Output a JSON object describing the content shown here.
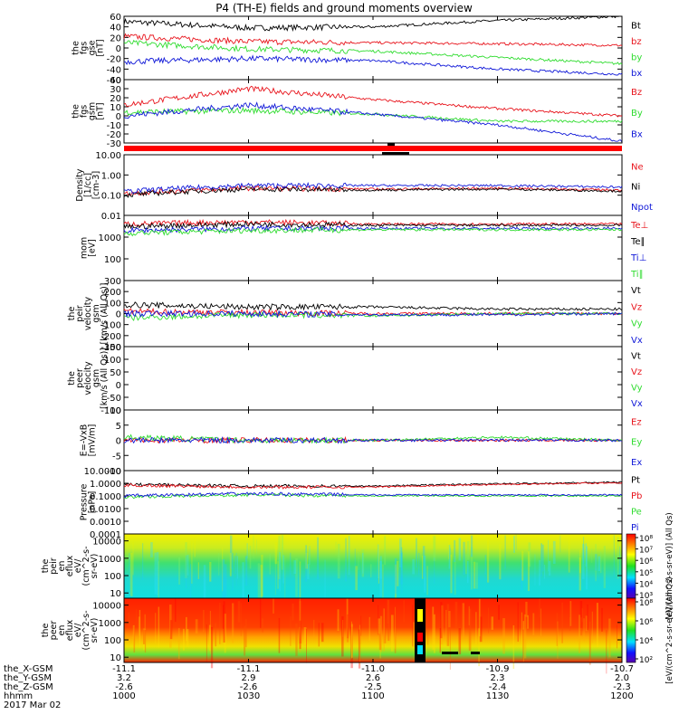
{
  "title": "P4 (TH-E) fields and ground moments overview",
  "colors": {
    "black": "#000000",
    "red": "#e8141c",
    "green": "#2fdc2f",
    "blue": "#1018d8"
  },
  "chart_data": [
    {
      "type": "line",
      "panel": "fgs_gse",
      "ylabel_lines": [
        "the",
        "fgs",
        "gse",
        "[nT]"
      ],
      "ylim": [
        -60,
        60
      ],
      "yticks": [
        "60",
        "40",
        "20",
        "0",
        "-20",
        "-40",
        "-60"
      ],
      "tickvals": [
        60,
        40,
        20,
        0,
        -20,
        -40,
        -60
      ],
      "legend": [
        "Bt",
        "bz",
        "by",
        "bx"
      ],
      "x": [
        "1000",
        "1030",
        "1100",
        "1130",
        "1200"
      ],
      "series": [
        {
          "name": "Bt",
          "color": "black",
          "values": [
            50,
            38,
            40,
            52,
            60
          ]
        },
        {
          "name": "bz",
          "color": "red",
          "values": [
            22,
            12,
            10,
            8,
            5
          ]
        },
        {
          "name": "by",
          "color": "green",
          "values": [
            10,
            -2,
            -6,
            -18,
            -30
          ]
        },
        {
          "name": "bx",
          "color": "blue",
          "values": [
            -26,
            -20,
            -24,
            -40,
            -50
          ]
        }
      ]
    },
    {
      "type": "line",
      "panel": "fgs_gsm",
      "ylabel_lines": [
        "the",
        "fgs",
        "gsm",
        "[nT]"
      ],
      "ylim": [
        -30,
        40
      ],
      "yticks": [
        "40",
        "30",
        "20",
        "10",
        "0",
        "-10",
        "-20",
        "-30"
      ],
      "tickvals": [
        40,
        30,
        20,
        10,
        0,
        -10,
        -20,
        -30
      ],
      "legend": [
        "Bz",
        "By",
        "Bx"
      ],
      "x": [
        "1000",
        "1030",
        "1100",
        "1130",
        "1200"
      ],
      "series": [
        {
          "name": "Bz",
          "color": "red",
          "values": [
            12,
            30,
            18,
            8,
            0
          ]
        },
        {
          "name": "By",
          "color": "green",
          "values": [
            4,
            6,
            2,
            -6,
            -6
          ]
        },
        {
          "name": "Bx",
          "color": "blue",
          "values": [
            0,
            12,
            2,
            -10,
            -28
          ]
        }
      ]
    },
    {
      "type": "line",
      "panel": "density",
      "ylabel_lines": [
        "Density",
        "[1/cc]",
        "[cm-3]"
      ],
      "log_scale": true,
      "ylim": [
        0.01,
        10
      ],
      "yticks": [
        "10.00",
        "1.00",
        "0.10",
        "0.01"
      ],
      "tickvals": [
        10,
        1,
        0.1,
        0.01
      ],
      "legend": [
        "Ne",
        "Ni",
        "Npot"
      ],
      "x": [
        "1000",
        "1030",
        "1100",
        "1130",
        "1200"
      ],
      "series": [
        {
          "name": "Ne",
          "color": "red",
          "values": [
            0.12,
            0.22,
            0.2,
            0.22,
            0.18
          ]
        },
        {
          "name": "Ni",
          "color": "black",
          "values": [
            0.1,
            0.2,
            0.18,
            0.2,
            0.16
          ]
        },
        {
          "name": "Npot",
          "color": "blue",
          "values": [
            0.15,
            0.3,
            0.3,
            0.3,
            0.25
          ]
        }
      ]
    },
    {
      "type": "line",
      "panel": "temperature",
      "ylabel_lines": [
        "mom",
        "[eV]"
      ],
      "log_scale": true,
      "ylim": [
        10,
        10000
      ],
      "yticks": [
        "1000",
        "100"
      ],
      "tickvals": [
        1000,
        100
      ],
      "legend": [
        "Te⊥",
        "Te∥",
        "Ti⊥",
        "Ti∥"
      ],
      "x": [
        "1000",
        "1030",
        "1100",
        "1130",
        "1200"
      ],
      "series": [
        {
          "name": "Te⊥",
          "color": "red",
          "values": [
            4000,
            5000,
            4000,
            4000,
            4000
          ]
        },
        {
          "name": "Te∥",
          "color": "black",
          "values": [
            3000,
            4000,
            3500,
            3500,
            3500
          ]
        },
        {
          "name": "Ti⊥",
          "color": "blue",
          "values": [
            2000,
            2500,
            2500,
            2500,
            2500
          ]
        },
        {
          "name": "Ti∥",
          "color": "green",
          "values": [
            1500,
            2000,
            2200,
            2200,
            2200
          ]
        }
      ]
    },
    {
      "type": "line",
      "panel": "peir_velocity",
      "ylabel_lines": [
        "the",
        "peir",
        "velocity",
        "gsm",
        "[km/s (All Qs)]"
      ],
      "ylim": [
        -300,
        300
      ],
      "yticks": [
        "300",
        "200",
        "100",
        "0",
        "-100",
        "-200",
        "-300"
      ],
      "tickvals": [
        300,
        200,
        100,
        0,
        -100,
        -200,
        -300
      ],
      "legend": [
        "Vt",
        "Vz",
        "Vy",
        "Vx"
      ],
      "x": [
        "1000",
        "1030",
        "1100",
        "1130",
        "1200"
      ],
      "series": [
        {
          "name": "Vt",
          "color": "black",
          "values": [
            80,
            60,
            60,
            40,
            40
          ]
        },
        {
          "name": "Vz",
          "color": "red",
          "values": [
            20,
            10,
            0,
            0,
            0
          ]
        },
        {
          "name": "Vy",
          "color": "green",
          "values": [
            -40,
            -10,
            -20,
            0,
            0
          ]
        },
        {
          "name": "Vx",
          "color": "blue",
          "values": [
            0,
            0,
            -10,
            -10,
            0
          ]
        }
      ]
    },
    {
      "type": "line",
      "panel": "peer_velocity",
      "ylabel_lines": [
        "the",
        "peer",
        "velocity",
        "gsm",
        "[km/s (All Qs)]"
      ],
      "ylim": [
        -100,
        150
      ],
      "yticks": [
        "150",
        "100",
        "50",
        "0",
        "-50",
        "-100"
      ],
      "tickvals": [
        150,
        100,
        50,
        0,
        -50,
        -100
      ],
      "legend": [
        "Vt",
        "Vz",
        "Vy",
        "Vx"
      ],
      "x": [],
      "series": []
    },
    {
      "type": "line",
      "panel": "efield",
      "ylabel_lines": [
        "E=-VxB",
        "[mV/m]"
      ],
      "ylim": [
        -10,
        10
      ],
      "yticks": [
        "10",
        "5",
        "0",
        "-5",
        "-10"
      ],
      "tickvals": [
        10,
        5,
        0,
        -5,
        -10
      ],
      "legend": [
        "Ez",
        "Ey",
        "Ex"
      ],
      "x": [
        "1000",
        "1030",
        "1100",
        "1130",
        "1200"
      ],
      "series": [
        {
          "name": "Ez",
          "color": "red",
          "values": [
            0,
            0,
            0,
            0,
            0
          ]
        },
        {
          "name": "Ey",
          "color": "green",
          "values": [
            1,
            0,
            0,
            1,
            0
          ]
        },
        {
          "name": "Ex",
          "color": "blue",
          "values": [
            0,
            0,
            0,
            0,
            0
          ]
        }
      ]
    },
    {
      "type": "line",
      "panel": "pressure",
      "ylabel_lines": [
        "Pressure",
        "[nPa]"
      ],
      "log_scale": true,
      "ylim": [
        0.0001,
        10
      ],
      "yticks": [
        "10.0000",
        "1.0000",
        "0.1000",
        "0.0100",
        "0.0010",
        "0.0001"
      ],
      "tickvals": [
        10,
        1,
        0.1,
        0.01,
        0.001,
        0.0001
      ],
      "legend": [
        "Pt",
        "Pb",
        "Pe",
        "Pi"
      ],
      "x": [
        "1000",
        "1030",
        "1100",
        "1130",
        "1200"
      ],
      "series": [
        {
          "name": "Pt",
          "color": "black",
          "values": [
            0.8,
            0.6,
            0.6,
            0.9,
            1.2
          ]
        },
        {
          "name": "Pb",
          "color": "red",
          "values": [
            0.7,
            0.5,
            0.5,
            0.8,
            1.1
          ]
        },
        {
          "name": "Pe",
          "color": "green",
          "values": [
            0.08,
            0.12,
            0.1,
            0.1,
            0.1
          ]
        },
        {
          "name": "Pi",
          "color": "blue",
          "values": [
            0.1,
            0.15,
            0.12,
            0.12,
            0.12
          ]
        }
      ]
    },
    {
      "type": "heatmap",
      "panel": "peir_en_eflux",
      "ylabel_lines": [
        "the",
        "peir",
        "en",
        "eflux",
        "eV/",
        "(cm^2-s-",
        "sr-eV)"
      ],
      "log_scale": true,
      "ylim": [
        5,
        25000
      ],
      "yticks": [
        "10000",
        "1000",
        "100",
        "10"
      ],
      "tickvals": [
        10000,
        1000,
        100,
        10
      ],
      "colorbar_ticks": [
        "10⁸",
        "10⁷",
        "10⁶",
        "10⁵",
        "10⁴",
        "10³"
      ],
      "colorbar_label": "[eV/(cm^2-s-sr-eV)] (All Qs)"
    },
    {
      "type": "heatmap",
      "panel": "peer_en_eflux",
      "ylabel_lines": [
        "the",
        "peer",
        "en",
        "eflux",
        "eV/",
        "(cm^2-s-",
        "sr-eV)"
      ],
      "log_scale": true,
      "ylim": [
        5,
        25000
      ],
      "yticks": [
        "10000",
        "1000",
        "100",
        "10"
      ],
      "tickvals": [
        10000,
        1000,
        100,
        10
      ],
      "colorbar_ticks": [
        "10⁸",
        "10⁶",
        "10⁴",
        "10²"
      ],
      "colorbar_label": "[eV/(cm^2-s-sr-eV)] (All Qs)"
    }
  ],
  "xaxis": {
    "row_labels": [
      "the_X-GSM",
      "the_Y-GSM",
      "the_Z-GSM",
      "hhmm",
      "2017 Mar 02"
    ],
    "columns": [
      [
        "-11.1",
        "3.2",
        "-2.6",
        "1000"
      ],
      [
        "-11.1",
        "2.9",
        "-2.6",
        "1030"
      ],
      [
        "-11.0",
        "2.6",
        "-2.5",
        "1100"
      ],
      [
        "-10.9",
        "2.3",
        "-2.4",
        "1130"
      ],
      [
        "-10.7",
        "2.0",
        "-2.3",
        "1200"
      ]
    ]
  }
}
